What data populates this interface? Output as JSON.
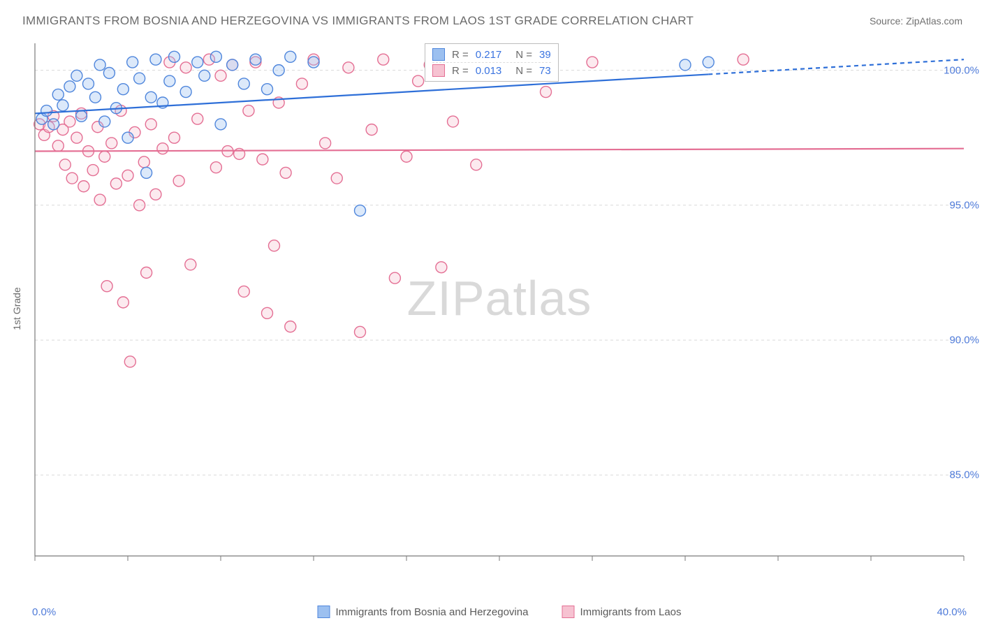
{
  "title": "IMMIGRANTS FROM BOSNIA AND HERZEGOVINA VS IMMIGRANTS FROM LAOS 1ST GRADE CORRELATION CHART",
  "source_prefix": "Source: ",
  "source_link": "ZipAtlas.com",
  "ylabel": "1st Grade",
  "watermark_bold": "ZIP",
  "watermark_thin": "atlas",
  "chart": {
    "type": "scatter",
    "background_color": "#ffffff",
    "grid_color": "#d9d9d9",
    "grid_dash": "4,4",
    "axis_color": "#7a7a7a",
    "tick_label_color": "#4f7bd9",
    "axis_label_color": "#6b6b6b",
    "label_fontsize": 14,
    "tick_fontsize": 15,
    "xlim": [
      0,
      40
    ],
    "ylim": [
      82,
      101
    ],
    "xticks": [
      0,
      4,
      8,
      12,
      16,
      20,
      24,
      28,
      32,
      36,
      40
    ],
    "xtick_labels_shown": {
      "0": "0.0%",
      "40": "40.0%"
    },
    "yticks": [
      85,
      90,
      95,
      100
    ],
    "ytick_labels": {
      "85": "85.0%",
      "90": "90.0%",
      "95": "95.0%",
      "100": "100.0%"
    },
    "marker_radius": 8,
    "marker_stroke_width": 1.4,
    "marker_fill_opacity": 0.35,
    "series": [
      {
        "key": "bosnia",
        "label": "Immigrants from Bosnia and Herzegovina",
        "fill": "#9cc0f0",
        "stroke": "#4f86dc",
        "points": [
          [
            0.3,
            98.2
          ],
          [
            0.5,
            98.5
          ],
          [
            0.8,
            98.0
          ],
          [
            1.0,
            99.1
          ],
          [
            1.2,
            98.7
          ],
          [
            1.5,
            99.4
          ],
          [
            1.8,
            99.8
          ],
          [
            2.0,
            98.3
          ],
          [
            2.3,
            99.5
          ],
          [
            2.6,
            99.0
          ],
          [
            2.8,
            100.2
          ],
          [
            3.0,
            98.1
          ],
          [
            3.2,
            99.9
          ],
          [
            3.5,
            98.6
          ],
          [
            3.8,
            99.3
          ],
          [
            4.0,
            97.5
          ],
          [
            4.2,
            100.3
          ],
          [
            4.5,
            99.7
          ],
          [
            4.8,
            96.2
          ],
          [
            5.0,
            99.0
          ],
          [
            5.2,
            100.4
          ],
          [
            5.5,
            98.8
          ],
          [
            5.8,
            99.6
          ],
          [
            6.0,
            100.5
          ],
          [
            6.5,
            99.2
          ],
          [
            7.0,
            100.3
          ],
          [
            7.3,
            99.8
          ],
          [
            7.8,
            100.5
          ],
          [
            8.0,
            98.0
          ],
          [
            8.5,
            100.2
          ],
          [
            9.0,
            99.5
          ],
          [
            9.5,
            100.4
          ],
          [
            10.0,
            99.3
          ],
          [
            10.5,
            100.0
          ],
          [
            11.0,
            100.5
          ],
          [
            12.0,
            100.3
          ],
          [
            14.0,
            94.8
          ],
          [
            28.0,
            100.2
          ],
          [
            29.0,
            100.3
          ]
        ],
        "trend": {
          "y_at_xmin": 98.4,
          "y_at_xmax": 100.4,
          "color": "#2e6fd8",
          "width": 2.2,
          "solid_until_x": 29,
          "dash": "6,5"
        },
        "stats": {
          "R": "0.217",
          "N": "39"
        }
      },
      {
        "key": "laos",
        "label": "Immigrants from Laos",
        "fill": "#f6c2d1",
        "stroke": "#e46f94",
        "points": [
          [
            0.2,
            98.0
          ],
          [
            0.4,
            97.6
          ],
          [
            0.6,
            97.9
          ],
          [
            0.8,
            98.3
          ],
          [
            1.0,
            97.2
          ],
          [
            1.2,
            97.8
          ],
          [
            1.3,
            96.5
          ],
          [
            1.5,
            98.1
          ],
          [
            1.6,
            96.0
          ],
          [
            1.8,
            97.5
          ],
          [
            2.0,
            98.4
          ],
          [
            2.1,
            95.7
          ],
          [
            2.3,
            97.0
          ],
          [
            2.5,
            96.3
          ],
          [
            2.7,
            97.9
          ],
          [
            2.8,
            95.2
          ],
          [
            3.0,
            96.8
          ],
          [
            3.1,
            92.0
          ],
          [
            3.3,
            97.3
          ],
          [
            3.5,
            95.8
          ],
          [
            3.7,
            98.5
          ],
          [
            3.8,
            91.4
          ],
          [
            4.0,
            96.1
          ],
          [
            4.1,
            89.2
          ],
          [
            4.3,
            97.7
          ],
          [
            4.5,
            95.0
          ],
          [
            4.7,
            96.6
          ],
          [
            4.8,
            92.5
          ],
          [
            5.0,
            98.0
          ],
          [
            5.2,
            95.4
          ],
          [
            5.5,
            97.1
          ],
          [
            5.8,
            100.3
          ],
          [
            6.0,
            97.5
          ],
          [
            6.2,
            95.9
          ],
          [
            6.5,
            100.1
          ],
          [
            6.7,
            92.8
          ],
          [
            7.0,
            98.2
          ],
          [
            7.5,
            100.4
          ],
          [
            7.8,
            96.4
          ],
          [
            8.0,
            99.8
          ],
          [
            8.3,
            97.0
          ],
          [
            8.5,
            100.2
          ],
          [
            8.8,
            96.9
          ],
          [
            9.0,
            91.8
          ],
          [
            9.2,
            98.5
          ],
          [
            9.5,
            100.3
          ],
          [
            9.8,
            96.7
          ],
          [
            10.0,
            91.0
          ],
          [
            10.3,
            93.5
          ],
          [
            10.5,
            98.8
          ],
          [
            10.8,
            96.2
          ],
          [
            11.0,
            90.5
          ],
          [
            11.5,
            99.5
          ],
          [
            12.0,
            100.4
          ],
          [
            12.5,
            97.3
          ],
          [
            13.0,
            96.0
          ],
          [
            13.5,
            100.1
          ],
          [
            14.0,
            90.3
          ],
          [
            14.5,
            97.8
          ],
          [
            15.0,
            100.4
          ],
          [
            15.5,
            92.3
          ],
          [
            16.0,
            96.8
          ],
          [
            16.5,
            99.6
          ],
          [
            17.0,
            100.2
          ],
          [
            17.5,
            92.7
          ],
          [
            18.0,
            98.1
          ],
          [
            18.5,
            100.3
          ],
          [
            19.0,
            96.5
          ],
          [
            20.0,
            100.0
          ],
          [
            21.0,
            100.4
          ],
          [
            22.0,
            99.2
          ],
          [
            24.0,
            100.3
          ],
          [
            30.5,
            100.4
          ]
        ],
        "trend": {
          "y_at_xmin": 97.0,
          "y_at_xmax": 97.1,
          "color": "#e46f94",
          "width": 2.2,
          "solid_until_x": 40,
          "dash": "none"
        },
        "stats": {
          "R": "0.013",
          "N": "73"
        }
      }
    ]
  },
  "stats_box": {
    "r_label": "R =",
    "n_label": "N ="
  }
}
